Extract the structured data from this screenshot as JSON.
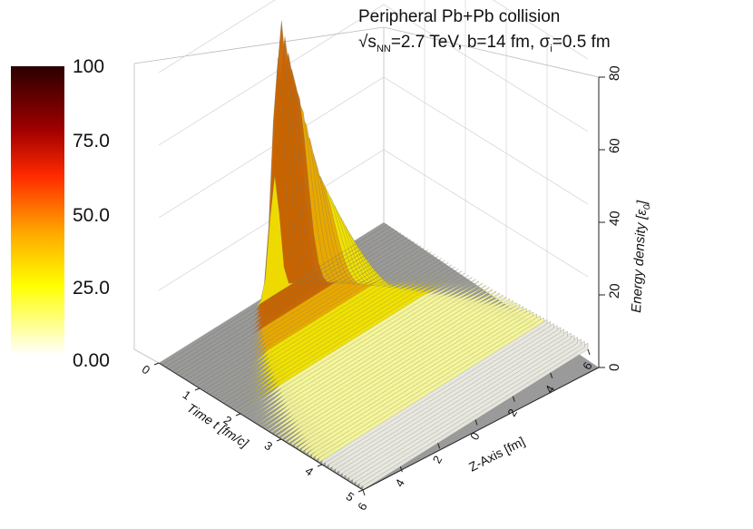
{
  "chart_data": {
    "type": "surface3d",
    "title_line1": "Peripheral Pb+Pb collision",
    "title_line2": {
      "sqrt": "√s",
      "sub_nn": "NN",
      "energy": "=2.7 TeV, b=14 fm, ",
      "sigma": "σ",
      "sub_i": "i",
      "width": "=0.5 fm"
    },
    "xlabel": "Time t [fm/c]",
    "ylabel": "Z-Axis [fm]",
    "zlabel": "Energy density [ε",
    "zlabel_sub": "0",
    "zlabel_end": "]",
    "x_ticks": [
      "0",
      "1",
      "2",
      "3",
      "4",
      "5"
    ],
    "y_ticks": [
      "6",
      "4",
      "2",
      "0",
      "2",
      "4",
      "6"
    ],
    "z_ticks": [
      "0",
      "20",
      "40",
      "60",
      "80"
    ],
    "xlim": [
      0,
      5
    ],
    "ylim": [
      -6,
      6
    ],
    "zlim": [
      0,
      80
    ],
    "colorbar": {
      "ticks": [
        "100",
        "75.0",
        "50.0",
        "25.0",
        "0.00"
      ],
      "range": [
        0,
        100
      ],
      "colors": [
        "#2a0000",
        "#a00000",
        "#ff2a00",
        "#ffaa00",
        "#ffff00",
        "#ffffff"
      ]
    },
    "ridge_peaks": [
      {
        "t": 0.2,
        "eps": 79
      },
      {
        "t": 1.0,
        "eps": 42
      },
      {
        "t": 2.0,
        "eps": 20
      },
      {
        "t": 3.0,
        "eps": 12
      },
      {
        "t": 4.0,
        "eps": 8
      },
      {
        "t": 5.0,
        "eps": 6
      }
    ],
    "grid": true
  }
}
